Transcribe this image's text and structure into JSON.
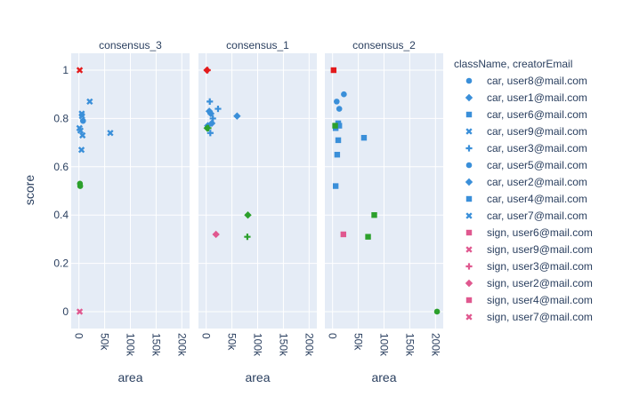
{
  "chart_data": {
    "type": "scatter",
    "xlabel": "area",
    "ylabel": "score",
    "xlim": [
      -15000,
      215000
    ],
    "ylim": [
      -0.07,
      1.07
    ],
    "x_ticks": [
      {
        "value": 0,
        "label": "0"
      },
      {
        "value": 50000,
        "label": "50k"
      },
      {
        "value": 100000,
        "label": "100k"
      },
      {
        "value": 150000,
        "label": "150k"
      },
      {
        "value": 200000,
        "label": "200k"
      }
    ],
    "y_ticks": [
      {
        "value": 0,
        "label": "0"
      },
      {
        "value": 0.2,
        "label": "0.2"
      },
      {
        "value": 0.4,
        "label": "0.4"
      },
      {
        "value": 0.6,
        "label": "0.6"
      },
      {
        "value": 0.8,
        "label": "0.8"
      },
      {
        "value": 1,
        "label": "1"
      }
    ],
    "grid": true,
    "legend_title": "className, creatorEmail",
    "legend_placement": "right",
    "colors": {
      "blue": "#3a8fd9",
      "green": "#2ca02c",
      "red": "#e31a1c",
      "pink": "#e0588f",
      "plot_bg": "#e5ecf6",
      "grid": "#ffffff",
      "text": "#2a3f5f"
    },
    "legend": [
      {
        "name": "car, user8@mail.com",
        "symbol": "circle",
        "color": "blue"
      },
      {
        "name": "car, user1@mail.com",
        "symbol": "diamond",
        "color": "blue"
      },
      {
        "name": "car, user6@mail.com",
        "symbol": "square",
        "color": "blue"
      },
      {
        "name": "car, user9@mail.com",
        "symbol": "x",
        "color": "blue"
      },
      {
        "name": "car, user3@mail.com",
        "symbol": "cross",
        "color": "blue"
      },
      {
        "name": "car, user5@mail.com",
        "symbol": "circle",
        "color": "blue"
      },
      {
        "name": "car, user2@mail.com",
        "symbol": "diamond",
        "color": "blue"
      },
      {
        "name": "car, user4@mail.com",
        "symbol": "square",
        "color": "blue"
      },
      {
        "name": "car, user7@mail.com",
        "symbol": "x",
        "color": "blue"
      },
      {
        "name": "sign, user6@mail.com",
        "symbol": "square",
        "color": "pink"
      },
      {
        "name": "sign, user9@mail.com",
        "symbol": "x",
        "color": "pink"
      },
      {
        "name": "sign, user3@mail.com",
        "symbol": "cross",
        "color": "pink"
      },
      {
        "name": "sign, user2@mail.com",
        "symbol": "diamond",
        "color": "pink"
      },
      {
        "name": "sign, user4@mail.com",
        "symbol": "square",
        "color": "pink"
      },
      {
        "name": "sign, user7@mail.com",
        "symbol": "x",
        "color": "pink"
      }
    ],
    "panels": [
      {
        "title": "consensus_3",
        "points": [
          {
            "x": 1500,
            "y": 1.0,
            "symbol": "x",
            "color": "red"
          },
          {
            "x": 1000,
            "y": 0.76,
            "symbol": "x",
            "color": "blue"
          },
          {
            "x": 3000,
            "y": 0.75,
            "symbol": "x",
            "color": "blue"
          },
          {
            "x": 5500,
            "y": 0.82,
            "symbol": "x",
            "color": "blue"
          },
          {
            "x": 6000,
            "y": 0.81,
            "symbol": "x",
            "color": "blue"
          },
          {
            "x": 8000,
            "y": 0.79,
            "symbol": "circle",
            "color": "blue"
          },
          {
            "x": 7000,
            "y": 0.73,
            "symbol": "x",
            "color": "blue"
          },
          {
            "x": 5000,
            "y": 0.67,
            "symbol": "x",
            "color": "blue"
          },
          {
            "x": 21000,
            "y": 0.87,
            "symbol": "x",
            "color": "blue"
          },
          {
            "x": 61000,
            "y": 0.74,
            "symbol": "x",
            "color": "blue"
          },
          {
            "x": 2000,
            "y": 0.53,
            "symbol": "circle",
            "color": "green"
          },
          {
            "x": 2500,
            "y": 0.52,
            "symbol": "circle",
            "color": "green"
          },
          {
            "x": 1500,
            "y": 0.0,
            "symbol": "x",
            "color": "pink"
          }
        ]
      },
      {
        "title": "consensus_1",
        "points": [
          {
            "x": 1500,
            "y": 1.0,
            "symbol": "diamond",
            "color": "red"
          },
          {
            "x": 2500,
            "y": 1.0,
            "symbol": "cross",
            "color": "red"
          },
          {
            "x": 7000,
            "y": 0.87,
            "symbol": "cross",
            "color": "blue"
          },
          {
            "x": 23000,
            "y": 0.84,
            "symbol": "cross",
            "color": "blue"
          },
          {
            "x": 6000,
            "y": 0.83,
            "symbol": "diamond",
            "color": "blue"
          },
          {
            "x": 9000,
            "y": 0.82,
            "symbol": "diamond",
            "color": "blue"
          },
          {
            "x": 60000,
            "y": 0.81,
            "symbol": "diamond",
            "color": "blue"
          },
          {
            "x": 13000,
            "y": 0.8,
            "symbol": "cross",
            "color": "blue"
          },
          {
            "x": 11000,
            "y": 0.78,
            "symbol": "diamond",
            "color": "blue"
          },
          {
            "x": 3000,
            "y": 0.77,
            "symbol": "diamond",
            "color": "blue"
          },
          {
            "x": 8000,
            "y": 0.74,
            "symbol": "cross",
            "color": "blue"
          },
          {
            "x": 2000,
            "y": 0.76,
            "symbol": "diamond",
            "color": "green"
          },
          {
            "x": 4000,
            "y": 0.76,
            "symbol": "cross",
            "color": "green"
          },
          {
            "x": 81000,
            "y": 0.4,
            "symbol": "diamond",
            "color": "green"
          },
          {
            "x": 80000,
            "y": 0.31,
            "symbol": "cross",
            "color": "green"
          },
          {
            "x": 19000,
            "y": 0.32,
            "symbol": "diamond",
            "color": "pink"
          }
        ]
      },
      {
        "title": "consensus_2",
        "points": [
          {
            "x": 2000,
            "y": 1.0,
            "symbol": "square",
            "color": "red"
          },
          {
            "x": 22000,
            "y": 0.9,
            "symbol": "circle",
            "color": "blue"
          },
          {
            "x": 8000,
            "y": 0.87,
            "symbol": "circle",
            "color": "blue"
          },
          {
            "x": 13000,
            "y": 0.84,
            "symbol": "circle",
            "color": "blue"
          },
          {
            "x": 11000,
            "y": 0.78,
            "symbol": "square",
            "color": "blue"
          },
          {
            "x": 13000,
            "y": 0.77,
            "symbol": "square",
            "color": "blue"
          },
          {
            "x": 6000,
            "y": 0.76,
            "symbol": "square",
            "color": "blue"
          },
          {
            "x": 61000,
            "y": 0.72,
            "symbol": "square",
            "color": "blue"
          },
          {
            "x": 11000,
            "y": 0.71,
            "symbol": "square",
            "color": "blue"
          },
          {
            "x": 9000,
            "y": 0.65,
            "symbol": "square",
            "color": "blue"
          },
          {
            "x": 6000,
            "y": 0.52,
            "symbol": "square",
            "color": "blue"
          },
          {
            "x": 5000,
            "y": 0.77,
            "symbol": "square",
            "color": "green"
          },
          {
            "x": 81000,
            "y": 0.4,
            "symbol": "square",
            "color": "green"
          },
          {
            "x": 69000,
            "y": 0.31,
            "symbol": "square",
            "color": "green"
          },
          {
            "x": 203000,
            "y": 0.0,
            "symbol": "circle",
            "color": "green"
          },
          {
            "x": 21000,
            "y": 0.32,
            "symbol": "square",
            "color": "pink"
          }
        ]
      }
    ]
  }
}
